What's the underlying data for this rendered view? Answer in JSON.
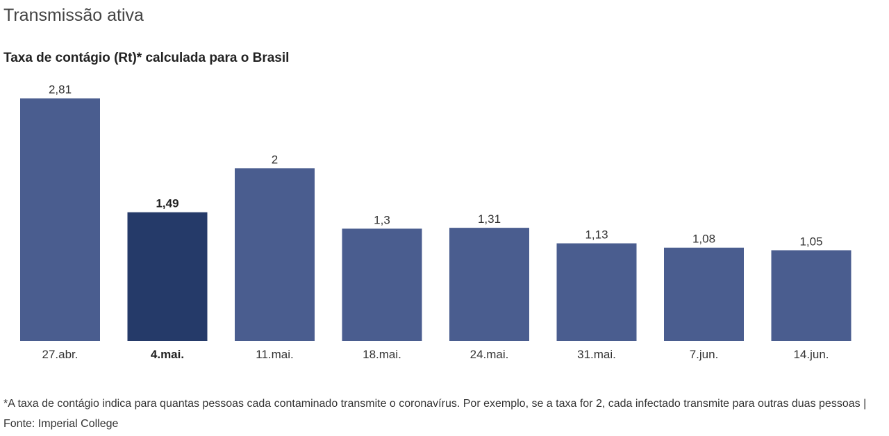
{
  "header": {
    "title": "Transmissão ativa"
  },
  "chart_data": {
    "type": "bar",
    "title": "Taxa de contágio (Rt)* calculada para o Brasil",
    "xlabel": "",
    "ylabel": "",
    "ylim": [
      0,
      3
    ],
    "grid": false,
    "categories": [
      "27.abr.",
      "4.mai.",
      "11.mai.",
      "18.mai.",
      "24.mai.",
      "31.mai.",
      "7.jun.",
      "14.jun."
    ],
    "values": [
      2.81,
      1.49,
      2,
      1.3,
      1.31,
      1.13,
      1.08,
      1.05
    ],
    "value_labels": [
      "2,81",
      "1,49",
      "2",
      "1,3",
      "1,31",
      "1,13",
      "1,08",
      "1,05"
    ],
    "highlight_index": 1,
    "colors": {
      "bar": "#4a5d8f",
      "highlight": "#253a69"
    }
  },
  "footnote": "*A taxa de contágio indica para quantas pessoas cada contaminado transmite o coronavírus. Por exemplo, se a taxa for 2, cada infectado transmite para outras duas pessoas | Fonte: Imperial College"
}
